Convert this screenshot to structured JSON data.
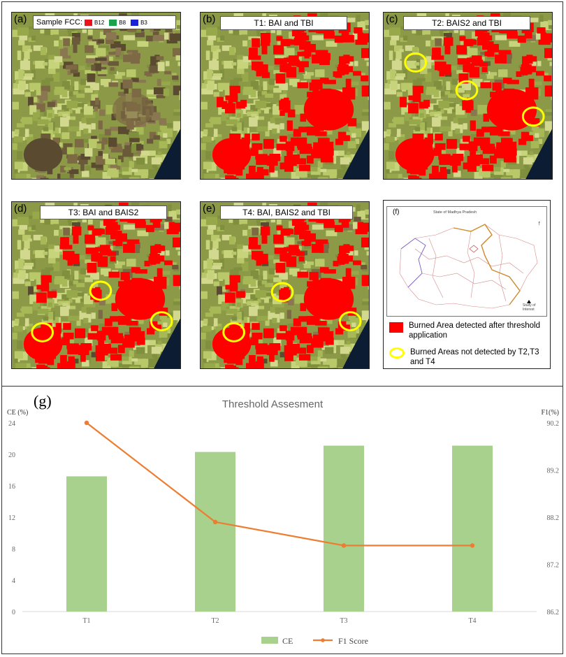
{
  "panels": [
    {
      "label": "(a)",
      "title": "",
      "burn": 0,
      "circles": []
    },
    {
      "label": "(b)",
      "title": "T1: BAI and TBI",
      "burn": 1,
      "circles": []
    },
    {
      "label": "(c)",
      "title": "T2: BAIS2 and TBI",
      "burn": 0.85,
      "circles": [
        [
          46,
          72
        ],
        [
          120,
          112
        ],
        [
          216,
          150
        ]
      ]
    },
    {
      "label": "(d)",
      "title": "T3: BAI and BAIS2",
      "burn": 0.8,
      "circles": [
        [
          44,
          188
        ],
        [
          128,
          128
        ],
        [
          216,
          172
        ]
      ]
    },
    {
      "label": "(e)",
      "title": "T4: BAI, BAIS2 and TBI",
      "burn": 0.8,
      "circles": [
        [
          48,
          188
        ],
        [
          118,
          130
        ],
        [
          216,
          172
        ]
      ]
    }
  ],
  "fcc": {
    "label": "Sample FCC:",
    "bands": [
      {
        "name": "B12",
        "color": "#e8141c"
      },
      {
        "name": "B8",
        "color": "#1ba24c"
      },
      {
        "name": "B3",
        "color": "#1a22d8"
      }
    ]
  },
  "panel_f": {
    "label": "(f)",
    "map_title": "State of Madhya Pradesh",
    "map_legend": "Study of Interest",
    "legend_red": "Burned Area detected after threshold application",
    "legend_yellow": "Burned Areas not detected by T2,T3 and T4"
  },
  "colors": {
    "burn": "#ff0000",
    "circle": "#ffff00",
    "bar": "#a9d18e",
    "line": "#ed7d31"
  },
  "chart_data": {
    "type": "bar",
    "panel_label": "(g)",
    "title": "Threshold Assesment",
    "categories": [
      "T1",
      "T2",
      "T3",
      "T4"
    ],
    "y_left": {
      "label": "CE (%)",
      "ylim": [
        0,
        24
      ],
      "ticks": [
        "0",
        "4",
        "8",
        "12",
        "16",
        "20",
        "24"
      ]
    },
    "y_right": {
      "label": "F1(%)",
      "ylim": [
        86.2,
        90.2
      ],
      "ticks": [
        "86.2",
        "87.2",
        "88.2",
        "89.2",
        "90.2"
      ]
    },
    "series": [
      {
        "name": "CE",
        "type": "bar",
        "axis": "left",
        "values": [
          17.2,
          20.3,
          21.1,
          21.1
        ]
      },
      {
        "name": "F1 Score",
        "type": "line",
        "axis": "right",
        "values": [
          90.2,
          88.1,
          87.6,
          87.6
        ]
      }
    ],
    "grid": false,
    "legend": "bottom"
  }
}
